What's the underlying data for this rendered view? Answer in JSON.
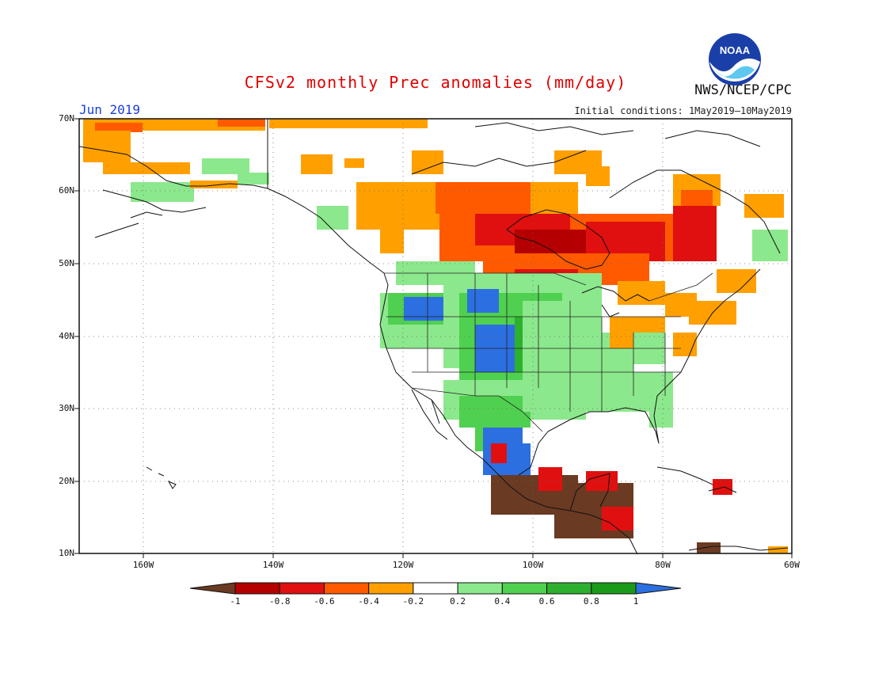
{
  "title": "CFSv2 monthly Prec anomalies (mm/day)",
  "agency": "NWS/NCEP/CPC",
  "logo_text": "NOAA",
  "target_month": "Jun 2019",
  "initial_conditions": "Initial conditions: 1May2019—10May2019",
  "lat_labels": [
    "70N",
    "60N",
    "50N",
    "40N",
    "30N",
    "20N",
    "10N"
  ],
  "lon_labels": [
    "160W",
    "140W",
    "120W",
    "100W",
    "80W",
    "60W"
  ],
  "colorbar": {
    "labels": [
      "-1",
      "-0.8",
      "-0.6",
      "-0.4",
      "-0.2",
      "0.2",
      "0.4",
      "0.6",
      "0.8",
      "1"
    ],
    "colors": [
      "#6b3a22",
      "#b40000",
      "#e01010",
      "#ff5a00",
      "#ffa000",
      "#ffffff",
      "#8ce88c",
      "#50d050",
      "#2db02d",
      "#1a9a1a",
      "#2c6fe0"
    ]
  }
}
